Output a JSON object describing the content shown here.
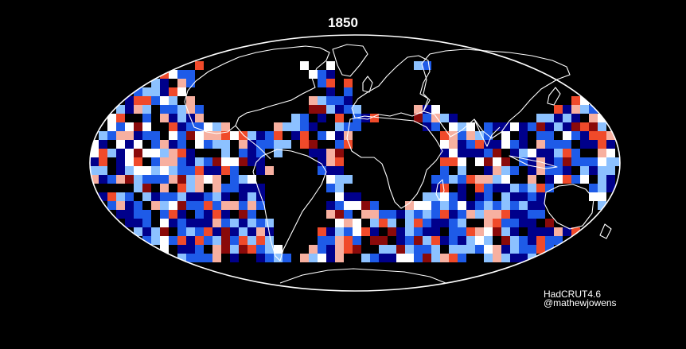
{
  "map": {
    "title": "1850",
    "projection": "mollweide",
    "background_color": "#000000",
    "outline_color": "#ffffff",
    "coastline_color": "#ffffff",
    "color_scale": {
      "negative_strong": "#00008b",
      "negative_mid": "#1e5be8",
      "negative_light": "#8cc1ff",
      "neutral": "#ffffff",
      "positive_light": "#f7b0a0",
      "positive_mid": "#f04a2a",
      "positive_strong": "#8a0a0a"
    },
    "data_coverage": "ocean gridded anomaly cells; land and polar regions without data shown black"
  },
  "credits": {
    "source": "HadCRUT4.6",
    "author": "@mathewjowens"
  }
}
